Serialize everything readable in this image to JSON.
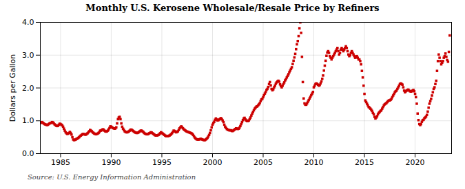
{
  "chart_data": {
    "type": "scatter",
    "title": "Monthly U.S. Kerosene Wholesale/Resale Price by Refiners",
    "ylabel": "Dollars per Gallon",
    "source": "Source: U.S. Energy Information Administration",
    "color": "#cc0000",
    "marker": "square",
    "grid": true,
    "xlim": [
      1983.0,
      2023.6
    ],
    "xticks": [
      1985,
      1990,
      1995,
      2000,
      2005,
      2010,
      2015,
      2020
    ],
    "ylim": [
      0.0,
      4.0
    ],
    "yticks": [
      {
        "value": 0.0,
        "label": "0.0"
      },
      {
        "value": 1.0,
        "label": "1.0"
      },
      {
        "value": 2.0,
        "label": "2.0"
      },
      {
        "value": 3.0,
        "label": "3.0"
      },
      {
        "value": 4.0,
        "label": "4.0"
      }
    ],
    "x": [
      1983.0,
      1983.083,
      1983.167,
      1983.25,
      1983.333,
      1983.417,
      1983.5,
      1983.583,
      1983.667,
      1983.75,
      1983.833,
      1983.917,
      1984.0,
      1984.083,
      1984.167,
      1984.25,
      1984.333,
      1984.417,
      1984.5,
      1984.583,
      1984.667,
      1984.75,
      1984.833,
      1984.917,
      1985.0,
      1985.083,
      1985.167,
      1985.25,
      1985.333,
      1985.417,
      1985.5,
      1985.583,
      1985.667,
      1985.75,
      1985.833,
      1985.917,
      1986.0,
      1986.083,
      1986.167,
      1986.25,
      1986.333,
      1986.417,
      1986.5,
      1986.583,
      1986.667,
      1986.75,
      1986.833,
      1986.917,
      1987.0,
      1987.083,
      1987.167,
      1987.25,
      1987.333,
      1987.417,
      1987.5,
      1987.583,
      1987.667,
      1987.75,
      1987.833,
      1987.917,
      1988.0,
      1988.083,
      1988.167,
      1988.25,
      1988.333,
      1988.417,
      1988.5,
      1988.583,
      1988.667,
      1988.75,
      1988.833,
      1988.917,
      1989.0,
      1989.083,
      1989.167,
      1989.25,
      1989.333,
      1989.417,
      1989.5,
      1989.583,
      1989.667,
      1989.75,
      1989.833,
      1989.917,
      1990.0,
      1990.083,
      1990.167,
      1990.25,
      1990.333,
      1990.417,
      1990.5,
      1990.583,
      1990.667,
      1990.75,
      1990.833,
      1990.917,
      1991.0,
      1991.083,
      1991.167,
      1991.25,
      1991.333,
      1991.417,
      1991.5,
      1991.583,
      1991.667,
      1991.75,
      1991.833,
      1991.917,
      1992.0,
      1992.083,
      1992.167,
      1992.25,
      1992.333,
      1992.417,
      1992.5,
      1992.583,
      1992.667,
      1992.75,
      1992.833,
      1992.917,
      1993.0,
      1993.083,
      1993.167,
      1993.25,
      1993.333,
      1993.417,
      1993.5,
      1993.583,
      1993.667,
      1993.75,
      1993.833,
      1993.917,
      1994.0,
      1994.083,
      1994.167,
      1994.25,
      1994.333,
      1994.417,
      1994.5,
      1994.583,
      1994.667,
      1994.75,
      1994.833,
      1994.917,
      1995.0,
      1995.083,
      1995.167,
      1995.25,
      1995.333,
      1995.417,
      1995.5,
      1995.583,
      1995.667,
      1995.75,
      1995.833,
      1995.917,
      1996.0,
      1996.083,
      1996.167,
      1996.25,
      1996.333,
      1996.417,
      1996.5,
      1996.583,
      1996.667,
      1996.75,
      1996.833,
      1996.917,
      1997.0,
      1997.083,
      1997.167,
      1997.25,
      1997.333,
      1997.417,
      1997.5,
      1997.583,
      1997.667,
      1997.75,
      1997.833,
      1997.917,
      1998.0,
      1998.083,
      1998.167,
      1998.25,
      1998.333,
      1998.417,
      1998.5,
      1998.583,
      1998.667,
      1998.75,
      1998.833,
      1998.917,
      1999.0,
      1999.083,
      1999.167,
      1999.25,
      1999.333,
      1999.417,
      1999.5,
      1999.583,
      1999.667,
      1999.75,
      1999.833,
      1999.917,
      2000.0,
      2000.083,
      2000.167,
      2000.25,
      2000.333,
      2000.417,
      2000.5,
      2000.583,
      2000.667,
      2000.75,
      2000.833,
      2000.917,
      2001.0,
      2001.083,
      2001.167,
      2001.25,
      2001.333,
      2001.417,
      2001.5,
      2001.583,
      2001.667,
      2001.75,
      2001.833,
      2001.917,
      2002.0,
      2002.083,
      2002.167,
      2002.25,
      2002.333,
      2002.417,
      2002.5,
      2002.583,
      2002.667,
      2002.75,
      2002.833,
      2002.917,
      2003.0,
      2003.083,
      2003.167,
      2003.25,
      2003.333,
      2003.417,
      2003.5,
      2003.583,
      2003.667,
      2003.75,
      2003.833,
      2003.917,
      2004.0,
      2004.083,
      2004.167,
      2004.25,
      2004.333,
      2004.417,
      2004.5,
      2004.583,
      2004.667,
      2004.75,
      2004.833,
      2004.917,
      2005.0,
      2005.083,
      2005.167,
      2005.25,
      2005.333,
      2005.417,
      2005.5,
      2005.583,
      2005.667,
      2005.75,
      2005.833,
      2005.917,
      2006.0,
      2006.083,
      2006.167,
      2006.25,
      2006.333,
      2006.417,
      2006.5,
      2006.583,
      2006.667,
      2006.75,
      2006.833,
      2006.917,
      2007.0,
      2007.083,
      2007.167,
      2007.25,
      2007.333,
      2007.417,
      2007.5,
      2007.583,
      2007.667,
      2007.75,
      2007.833,
      2007.917,
      2008.0,
      2008.083,
      2008.167,
      2008.25,
      2008.333,
      2008.417,
      2008.5,
      2008.583,
      2008.667,
      2008.75,
      2008.833,
      2008.917,
      2009.0,
      2009.083,
      2009.167,
      2009.25,
      2009.333,
      2009.417,
      2009.5,
      2009.583,
      2009.667,
      2009.75,
      2009.833,
      2009.917,
      2010.0,
      2010.083,
      2010.167,
      2010.25,
      2010.333,
      2010.417,
      2010.5,
      2010.583,
      2010.667,
      2010.75,
      2010.833,
      2010.917,
      2011.0,
      2011.083,
      2011.167,
      2011.25,
      2011.333,
      2011.417,
      2011.5,
      2011.583,
      2011.667,
      2011.75,
      2011.833,
      2011.917,
      2012.0,
      2012.083,
      2012.167,
      2012.25,
      2012.333,
      2012.417,
      2012.5,
      2012.583,
      2012.667,
      2012.75,
      2012.833,
      2012.917,
      2013.0,
      2013.083,
      2013.167,
      2013.25,
      2013.333,
      2013.417,
      2013.5,
      2013.583,
      2013.667,
      2013.75,
      2013.833,
      2013.917,
      2014.0,
      2014.083,
      2014.167,
      2014.25,
      2014.333,
      2014.417,
      2014.5,
      2014.583,
      2014.667,
      2014.75,
      2014.833,
      2014.917,
      2015.0,
      2015.083,
      2015.167,
      2015.25,
      2015.333,
      2015.417,
      2015.5,
      2015.583,
      2015.667,
      2015.75,
      2015.833,
      2015.917,
      2016.0,
      2016.083,
      2016.167,
      2016.25,
      2016.333,
      2016.417,
      2016.5,
      2016.583,
      2016.667,
      2016.75,
      2016.833,
      2016.917,
      2017.0,
      2017.083,
      2017.167,
      2017.25,
      2017.333,
      2017.417,
      2017.5,
      2017.583,
      2017.667,
      2017.75,
      2017.833,
      2017.917,
      2018.0,
      2018.083,
      2018.167,
      2018.25,
      2018.333,
      2018.417,
      2018.5,
      2018.583,
      2018.667,
      2018.75,
      2018.833,
      2018.917,
      2019.0,
      2019.083,
      2019.167,
      2019.25,
      2019.333,
      2019.417,
      2019.5,
      2019.583,
      2019.667,
      2019.75,
      2019.833,
      2019.917,
      2020.0,
      2020.083,
      2020.167,
      2020.25,
      2020.333,
      2020.417,
      2020.5,
      2020.583,
      2020.667,
      2020.75,
      2020.833,
      2020.917,
      2021.0,
      2021.083,
      2021.167,
      2021.25,
      2021.333,
      2021.417,
      2021.5,
      2021.583,
      2021.667,
      2021.75,
      2021.833,
      2021.917,
      2022.0,
      2022.083,
      2022.167,
      2022.25,
      2022.333,
      2022.417,
      2022.5,
      2022.583,
      2022.667,
      2022.75,
      2022.833,
      2022.917,
      2023.0,
      2023.083,
      2023.167,
      2023.25,
      2023.333,
      2023.417
    ],
    "values": [
      0.93,
      0.95,
      0.96,
      0.94,
      0.92,
      0.9,
      0.89,
      0.88,
      0.87,
      0.88,
      0.9,
      0.92,
      0.93,
      0.94,
      0.96,
      0.95,
      0.92,
      0.89,
      0.87,
      0.85,
      0.84,
      0.85,
      0.88,
      0.91,
      0.9,
      0.88,
      0.86,
      0.82,
      0.76,
      0.7,
      0.65,
      0.62,
      0.6,
      0.61,
      0.63,
      0.66,
      0.63,
      0.58,
      0.5,
      0.43,
      0.41,
      0.42,
      0.43,
      0.45,
      0.46,
      0.48,
      0.5,
      0.53,
      0.55,
      0.57,
      0.59,
      0.6,
      0.59,
      0.58,
      0.58,
      0.6,
      0.62,
      0.65,
      0.68,
      0.72,
      0.7,
      0.68,
      0.65,
      0.63,
      0.61,
      0.6,
      0.59,
      0.6,
      0.61,
      0.63,
      0.66,
      0.7,
      0.7,
      0.72,
      0.74,
      0.73,
      0.7,
      0.68,
      0.67,
      0.68,
      0.7,
      0.74,
      0.78,
      0.83,
      0.82,
      0.8,
      0.78,
      0.77,
      0.76,
      0.77,
      0.8,
      0.92,
      1.05,
      1.1,
      1.12,
      1.05,
      0.92,
      0.82,
      0.76,
      0.72,
      0.68,
      0.66,
      0.65,
      0.65,
      0.66,
      0.68,
      0.7,
      0.73,
      0.73,
      0.71,
      0.69,
      0.67,
      0.65,
      0.64,
      0.63,
      0.63,
      0.64,
      0.66,
      0.68,
      0.7,
      0.7,
      0.68,
      0.66,
      0.63,
      0.61,
      0.6,
      0.59,
      0.59,
      0.6,
      0.62,
      0.63,
      0.65,
      0.64,
      0.62,
      0.6,
      0.58,
      0.56,
      0.55,
      0.55,
      0.56,
      0.57,
      0.59,
      0.62,
      0.65,
      0.63,
      0.61,
      0.59,
      0.57,
      0.55,
      0.53,
      0.53,
      0.53,
      0.54,
      0.55,
      0.57,
      0.59,
      0.62,
      0.66,
      0.7,
      0.69,
      0.67,
      0.65,
      0.66,
      0.68,
      0.72,
      0.77,
      0.8,
      0.83,
      0.8,
      0.77,
      0.74,
      0.72,
      0.7,
      0.68,
      0.67,
      0.66,
      0.65,
      0.64,
      0.63,
      0.62,
      0.6,
      0.57,
      0.53,
      0.49,
      0.46,
      0.44,
      0.43,
      0.43,
      0.43,
      0.44,
      0.45,
      0.44,
      0.43,
      0.42,
      0.41,
      0.41,
      0.43,
      0.45,
      0.48,
      0.52,
      0.57,
      0.63,
      0.71,
      0.8,
      0.88,
      0.93,
      0.97,
      1.03,
      1.07,
      1.04,
      1.01,
      1.02,
      1.04,
      1.06,
      1.08,
      1.05,
      1.01,
      0.96,
      0.88,
      0.82,
      0.78,
      0.75,
      0.73,
      0.72,
      0.71,
      0.71,
      0.71,
      0.69,
      0.69,
      0.71,
      0.73,
      0.75,
      0.77,
      0.76,
      0.75,
      0.76,
      0.79,
      0.84,
      0.9,
      0.96,
      1.02,
      1.07,
      1.09,
      1.04,
      1.01,
      0.99,
      0.99,
      1.01,
      1.05,
      1.1,
      1.16,
      1.22,
      1.27,
      1.32,
      1.37,
      1.4,
      1.43,
      1.44,
      1.47,
      1.5,
      1.54,
      1.6,
      1.65,
      1.67,
      1.72,
      1.78,
      1.83,
      1.88,
      1.94,
      1.97,
      2.03,
      2.12,
      2.18,
      2.08,
      1.97,
      1.93,
      1.96,
      2.02,
      2.07,
      2.13,
      2.17,
      2.2,
      2.22,
      2.19,
      2.11,
      2.06,
      2.02,
      2.07,
      2.12,
      2.17,
      2.23,
      2.27,
      2.32,
      2.37,
      2.42,
      2.48,
      2.53,
      2.58,
      2.63,
      2.73,
      2.83,
      2.93,
      3.04,
      3.18,
      3.33,
      3.43,
      3.58,
      3.82,
      4.0,
      3.68,
      2.95,
      2.18,
      1.68,
      1.53,
      1.49,
      1.49,
      1.53,
      1.58,
      1.63,
      1.68,
      1.73,
      1.78,
      1.83,
      1.88,
      2.02,
      2.07,
      2.12,
      2.14,
      2.12,
      2.1,
      2.07,
      2.09,
      2.14,
      2.2,
      2.28,
      2.38,
      2.53,
      2.68,
      2.83,
      2.98,
      3.08,
      3.12,
      3.07,
      2.97,
      2.92,
      2.87,
      2.92,
      2.97,
      3.02,
      3.07,
      3.12,
      3.17,
      3.22,
      3.12,
      3.02,
      3.07,
      3.17,
      3.22,
      3.17,
      3.12,
      3.17,
      3.22,
      3.27,
      3.22,
      3.12,
      3.02,
      2.97,
      3.0,
      3.07,
      3.12,
      3.07,
      3.02,
      2.97,
      2.92,
      2.94,
      2.97,
      2.92,
      2.87,
      2.87,
      2.82,
      2.72,
      2.52,
      2.32,
      2.07,
      1.82,
      1.62,
      1.57,
      1.52,
      1.47,
      1.42,
      1.4,
      1.37,
      1.34,
      1.3,
      1.24,
      1.2,
      1.12,
      1.07,
      1.1,
      1.14,
      1.2,
      1.24,
      1.27,
      1.3,
      1.32,
      1.37,
      1.42,
      1.47,
      1.5,
      1.52,
      1.54,
      1.57,
      1.6,
      1.62,
      1.62,
      1.64,
      1.67,
      1.72,
      1.77,
      1.82,
      1.87,
      1.9,
      1.92,
      1.97,
      2.02,
      2.07,
      2.12,
      2.14,
      2.12,
      2.1,
      2.02,
      1.92,
      1.87,
      1.9,
      1.92,
      1.94,
      1.95,
      1.92,
      1.9,
      1.89,
      1.9,
      1.92,
      1.94,
      1.9,
      1.82,
      1.72,
      1.52,
      1.22,
      1.02,
      0.9,
      0.87,
      0.9,
      0.97,
      1.02,
      1.03,
      1.08,
      1.1,
      1.13,
      1.18,
      1.28,
      1.4,
      1.52,
      1.6,
      1.67,
      1.77,
      1.87,
      1.97,
      2.02,
      2.12,
      2.22,
      2.52,
      2.82,
      3.02,
      2.92,
      2.82,
      2.72,
      2.77,
      2.82,
      2.92,
      2.97,
      3.05,
      2.95,
      2.85,
      2.8,
      3.1,
      3.6
    ]
  }
}
